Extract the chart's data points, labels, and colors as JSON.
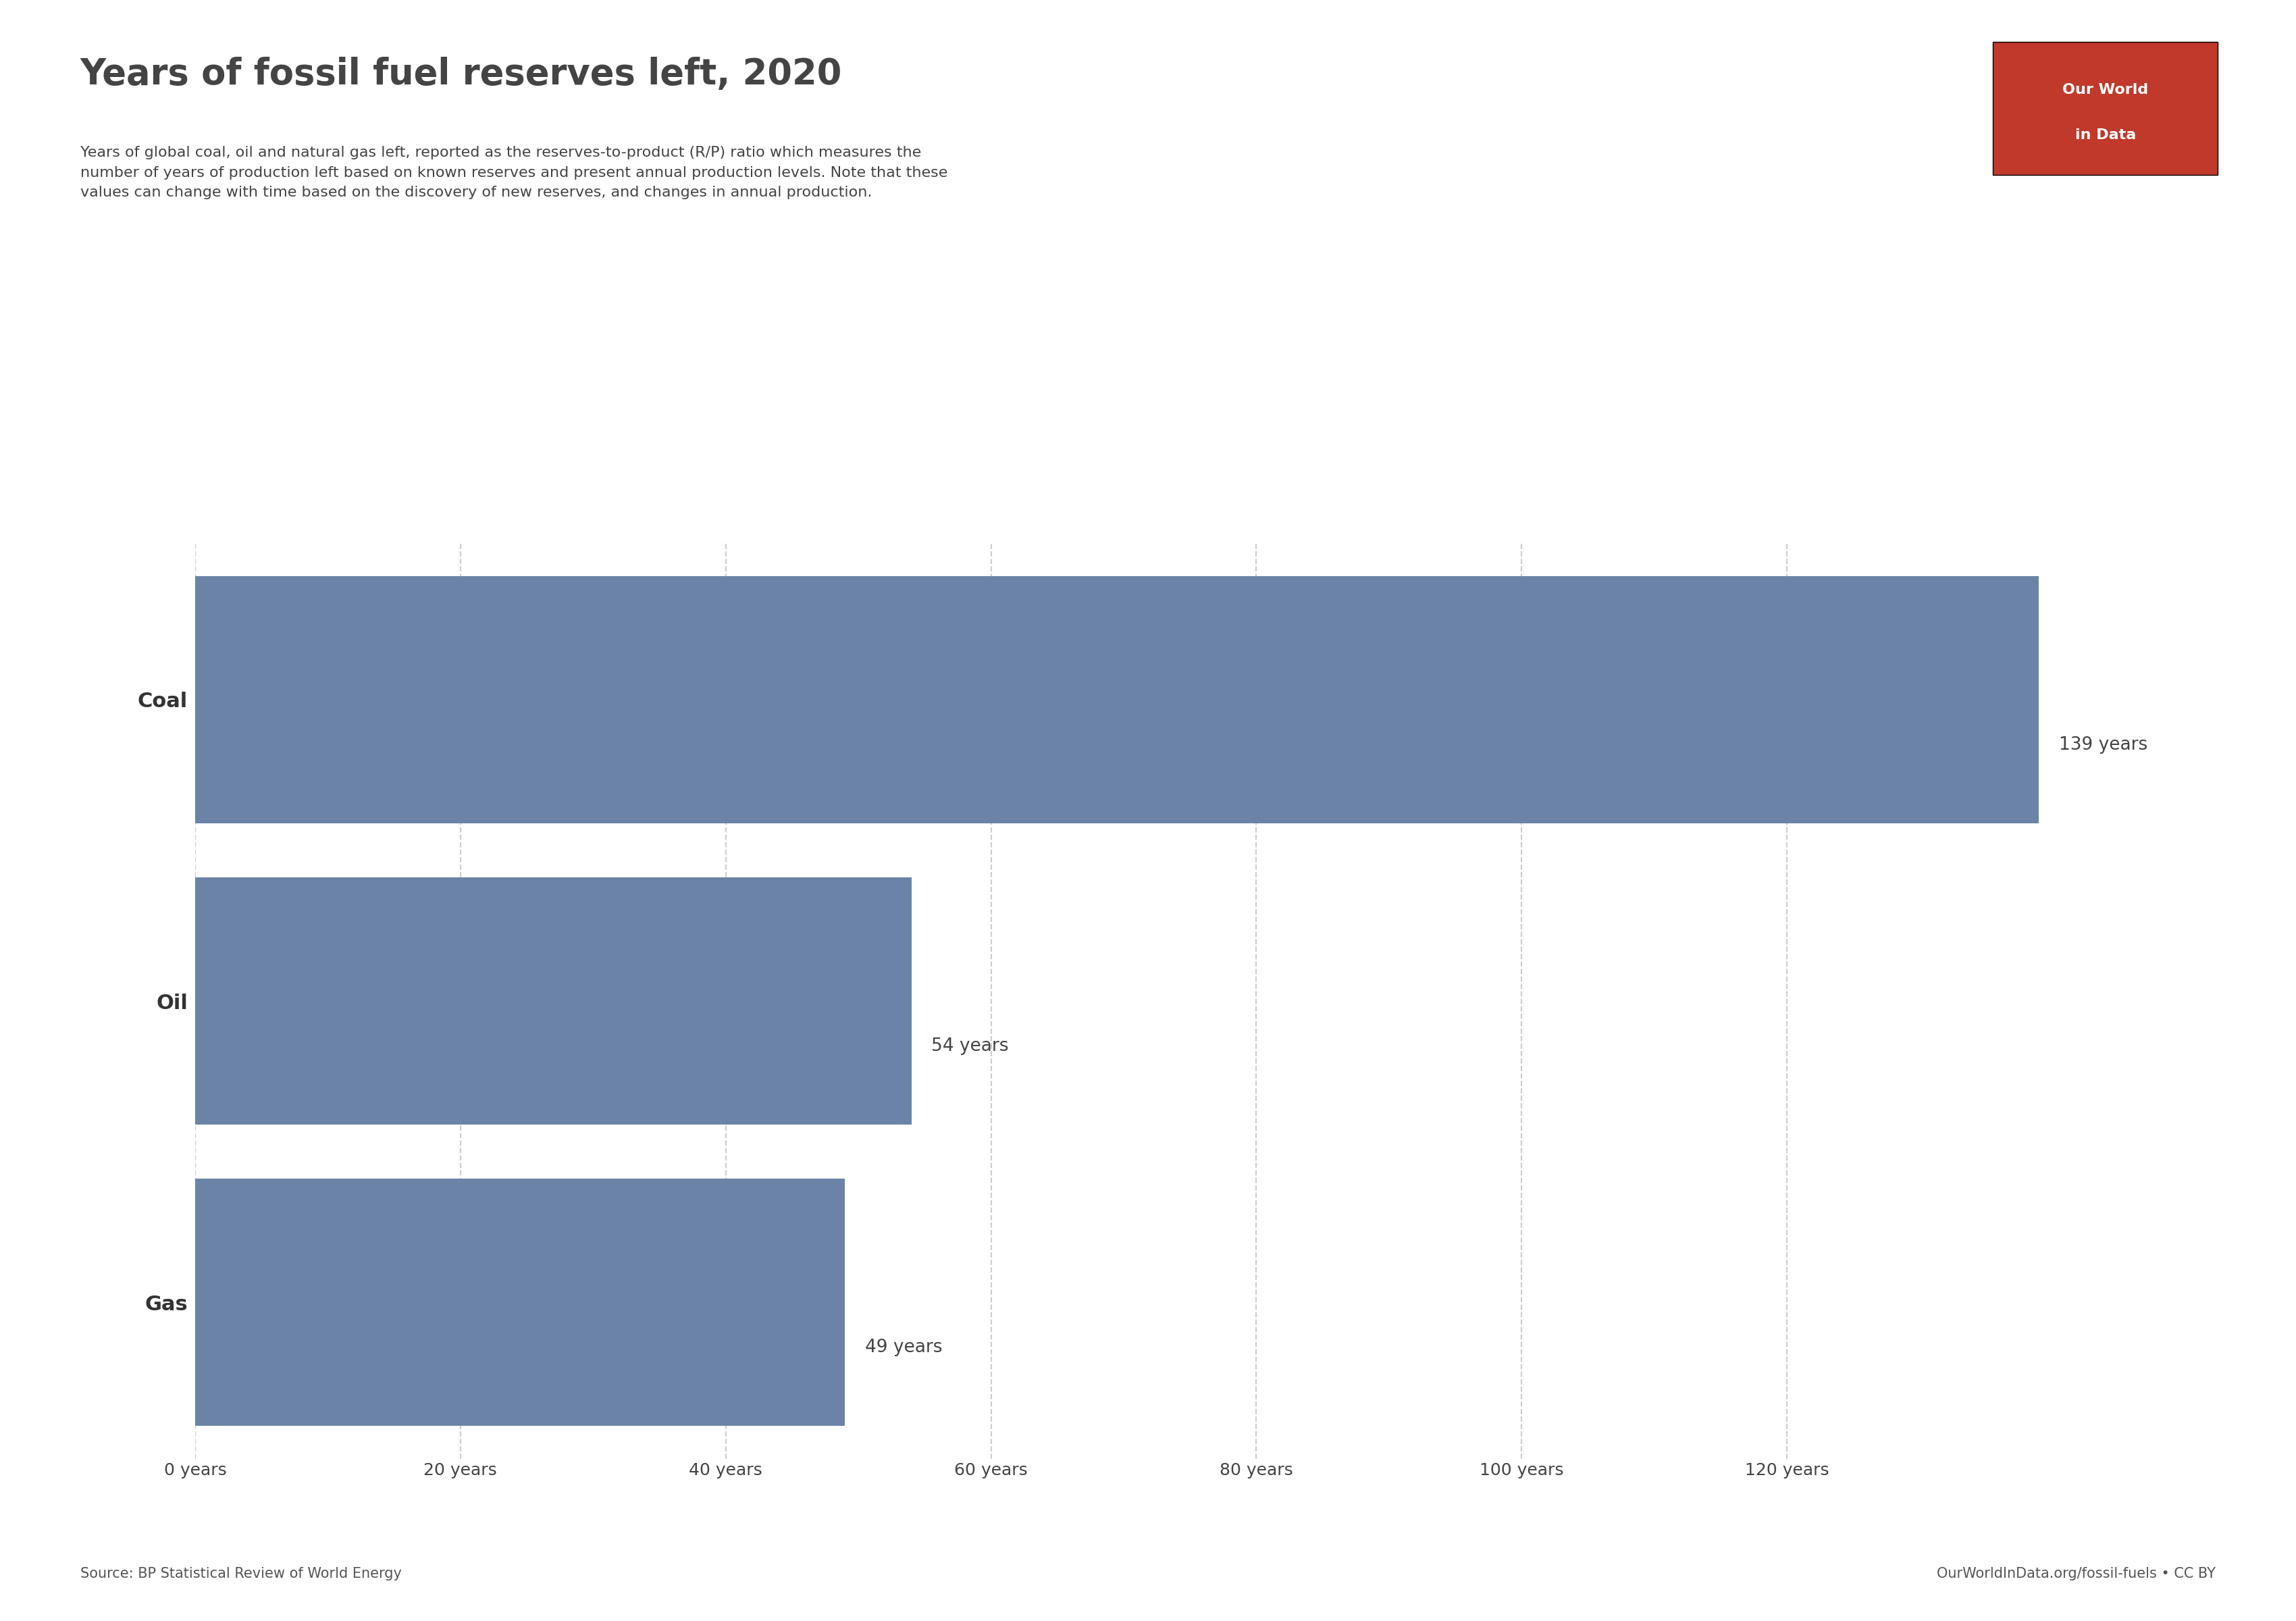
{
  "title": "Years of fossil fuel reserves left, 2020",
  "subtitle": "Years of global coal, oil and natural gas left, reported as the reserves-to-product (R/P) ratio which measures the\nnumber of years of production left based on known reserves and present annual production levels. Note that these\nvalues can change with time based on the discovery of new reserves, and changes in annual production.",
  "categories": [
    "Coal",
    "Oil",
    "Gas"
  ],
  "values": [
    139,
    54,
    49
  ],
  "bar_color": "#6b83a6",
  "background_color": "#ffffff",
  "source_left": "Source: BP Statistical Review of World Energy",
  "source_right": "OurWorldInData.org/fossil-fuels • CC BY",
  "logo_text_line1": "Our World",
  "logo_text_line2": "in Data",
  "logo_bg_color": "#c0392b",
  "logo_text_color": "#ffffff",
  "xtick_labels": [
    "0 years",
    "20 years",
    "40 years",
    "60 years",
    "80 years",
    "100 years",
    "120 years"
  ],
  "xtick_values": [
    0,
    20,
    40,
    60,
    80,
    100,
    120
  ],
  "xlim": [
    0,
    148
  ],
  "title_fontsize": 38,
  "subtitle_fontsize": 16,
  "label_fontsize": 22,
  "value_fontsize": 19,
  "tick_fontsize": 18,
  "source_fontsize": 15,
  "grid_color": "#cccccc",
  "title_color": "#444444",
  "text_color": "#444444",
  "ylabel_color": "#333333"
}
